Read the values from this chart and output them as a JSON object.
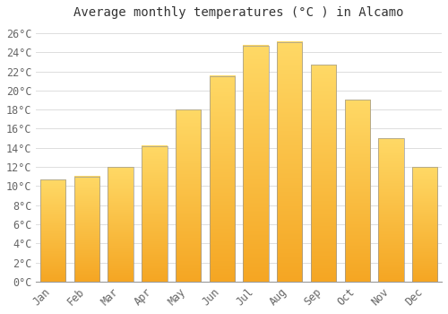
{
  "title": "Average monthly temperatures (°C ) in Alcamo",
  "months": [
    "Jan",
    "Feb",
    "Mar",
    "Apr",
    "May",
    "Jun",
    "Jul",
    "Aug",
    "Sep",
    "Oct",
    "Nov",
    "Dec"
  ],
  "values": [
    10.7,
    11.0,
    12.0,
    14.2,
    18.0,
    21.5,
    24.7,
    25.1,
    22.7,
    19.0,
    15.0,
    12.0
  ],
  "bar_color_bottom": "#F5A623",
  "bar_color_top": "#FFD966",
  "bar_edge_color": "#999999",
  "background_color": "#FFFFFF",
  "grid_color": "#DDDDDD",
  "title_color": "#333333",
  "tick_label_color": "#666666",
  "ylim": [
    0,
    27
  ],
  "yticks": [
    0,
    2,
    4,
    6,
    8,
    10,
    12,
    14,
    16,
    18,
    20,
    22,
    24,
    26
  ],
  "title_fontsize": 10,
  "tick_fontsize": 8.5,
  "bar_width": 0.75
}
